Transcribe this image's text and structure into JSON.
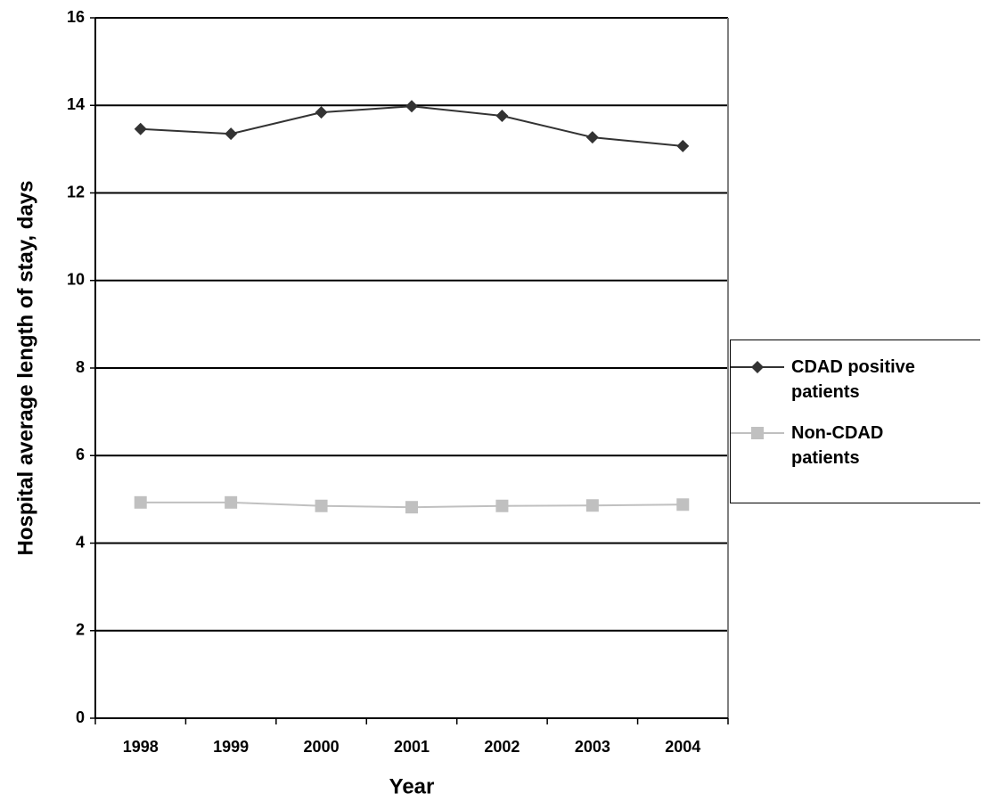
{
  "chart_data": {
    "type": "line",
    "x_label": "Year",
    "y_label": "Hospital average length of stay, days",
    "categories": [
      "1998",
      "1999",
      "2000",
      "2001",
      "2002",
      "2003",
      "2004"
    ],
    "series": [
      {
        "name": "CDAD positive patients",
        "color": "#333333",
        "marker": "diamond",
        "values": [
          13.46,
          13.35,
          13.84,
          13.98,
          13.76,
          13.27,
          13.07
        ]
      },
      {
        "name": "Non-CDAD patients",
        "color": "#c0c0c0",
        "marker": "square",
        "values": [
          4.93,
          4.93,
          4.85,
          4.82,
          4.85,
          4.86,
          4.88
        ]
      }
    ],
    "ylim": [
      0,
      16
    ],
    "yticks": [
      0,
      2,
      4,
      6,
      8,
      10,
      12,
      14,
      16
    ],
    "grid": true,
    "legend": "right"
  }
}
